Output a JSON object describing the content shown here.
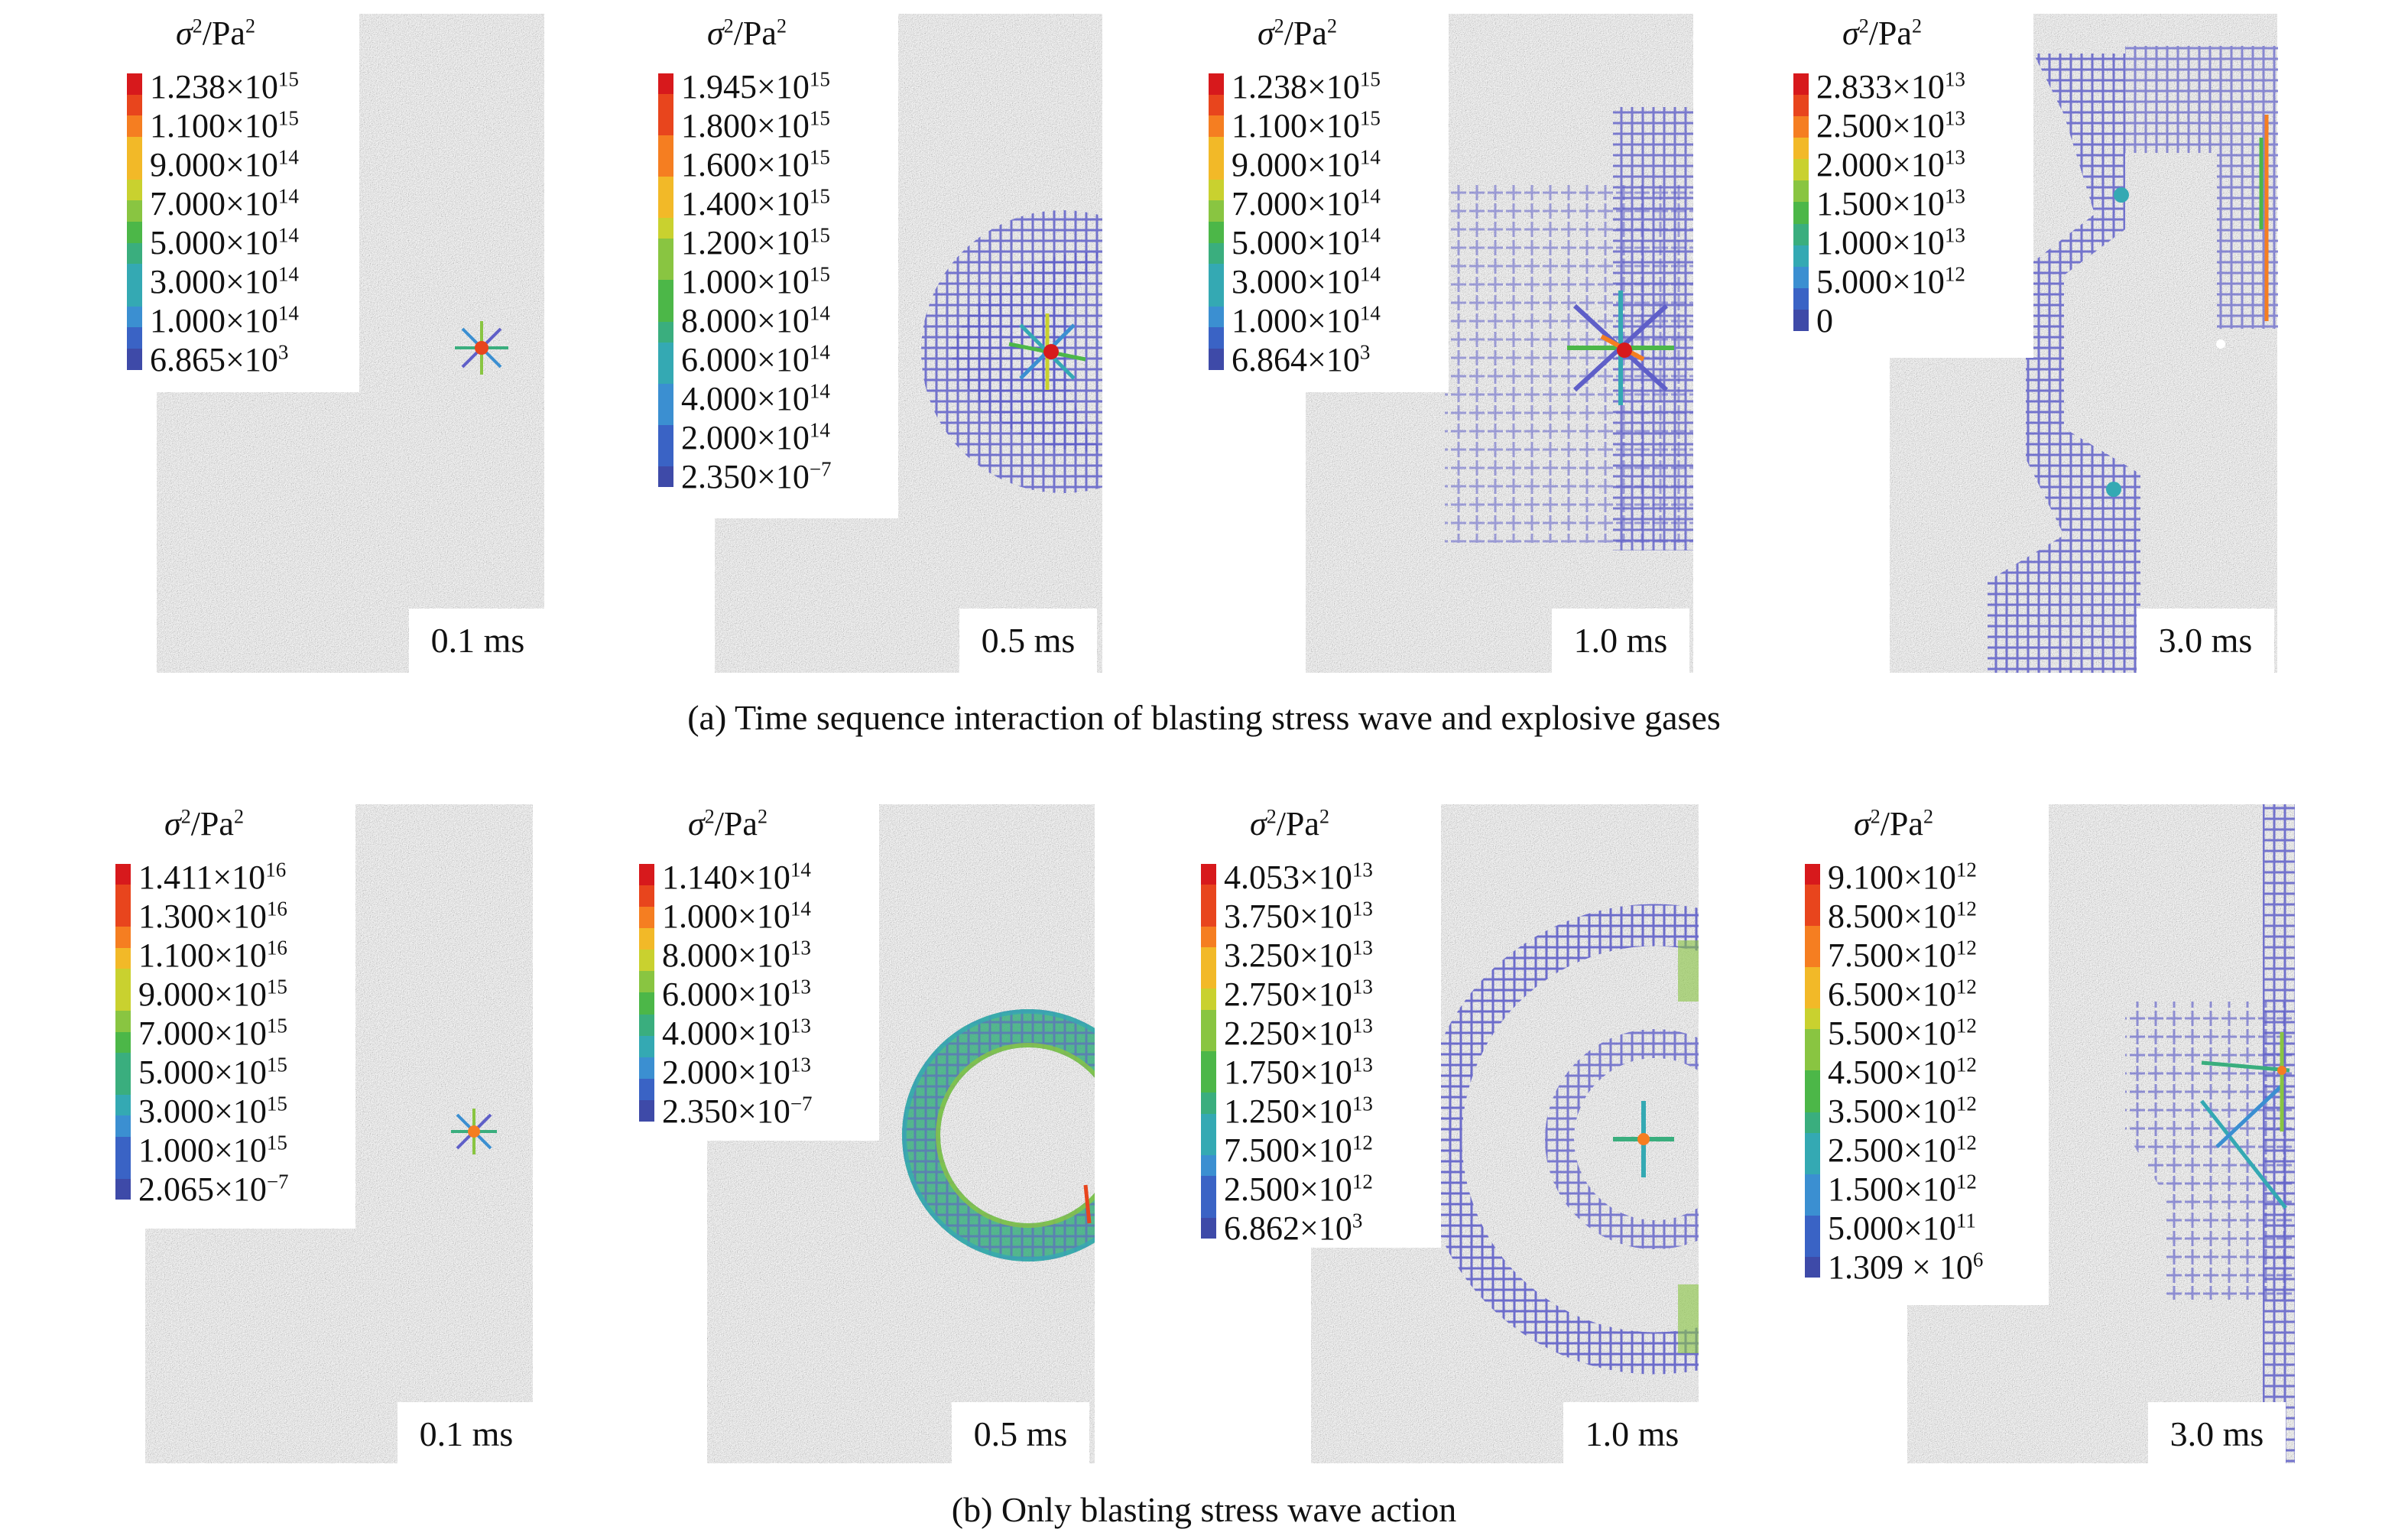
{
  "legend_title": "σ²/Pa²",
  "legend_colors": [
    "#d7191c",
    "#e8451d",
    "#f57e21",
    "#f2b928",
    "#c9d12f",
    "#89c541",
    "#4cb748",
    "#3aae7e",
    "#34a9b3",
    "#3b8fd1",
    "#3a63c5",
    "#3e4aa8"
  ],
  "stress_color": "#5f5fc8",
  "rows": [
    {
      "caption": "(a) Time sequence interaction of blasting stress wave and explosive gases",
      "panels": [
        {
          "time": "0.1 ms",
          "ticks": [
            {
              "m": "1.238",
              "e": "15"
            },
            {
              "m": "1.100",
              "e": "15"
            },
            {
              "m": "9.000",
              "e": "14"
            },
            {
              "m": "7.000",
              "e": "14"
            },
            {
              "m": "5.000",
              "e": "14"
            },
            {
              "m": "3.000",
              "e": "14"
            },
            {
              "m": "1.000",
              "e": "14"
            },
            {
              "m": "6.865",
              "e": "3"
            }
          ]
        },
        {
          "time": "0.5 ms",
          "ticks": [
            {
              "m": "1.945",
              "e": "15"
            },
            {
              "m": "1.800",
              "e": "15"
            },
            {
              "m": "1.600",
              "e": "15"
            },
            {
              "m": "1.400",
              "e": "15"
            },
            {
              "m": "1.200",
              "e": "15"
            },
            {
              "m": "1.000",
              "e": "15"
            },
            {
              "m": "8.000",
              "e": "14"
            },
            {
              "m": "6.000",
              "e": "14"
            },
            {
              "m": "4.000",
              "e": "14"
            },
            {
              "m": "2.000",
              "e": "14"
            },
            {
              "m": "2.350",
              "e": "−7"
            }
          ]
        },
        {
          "time": "1.0 ms",
          "ticks": [
            {
              "m": "1.238",
              "e": "15"
            },
            {
              "m": "1.100",
              "e": "15"
            },
            {
              "m": "9.000",
              "e": "14"
            },
            {
              "m": "7.000",
              "e": "14"
            },
            {
              "m": "5.000",
              "e": "14"
            },
            {
              "m": "3.000",
              "e": "14"
            },
            {
              "m": "1.000",
              "e": "14"
            },
            {
              "m": "6.864",
              "e": "3"
            }
          ]
        },
        {
          "time": "3.0 ms",
          "ticks": [
            {
              "m": "2.833",
              "e": "13"
            },
            {
              "m": "2.500",
              "e": "13"
            },
            {
              "m": "2.000",
              "e": "13"
            },
            {
              "m": "1.500",
              "e": "13"
            },
            {
              "m": "1.000",
              "e": "13"
            },
            {
              "m": "5.000",
              "e": "12"
            },
            {
              "m": "0",
              "e": ""
            }
          ]
        }
      ]
    },
    {
      "caption": "(b) Only blasting stress wave action",
      "panels": [
        {
          "time": "0.1 ms",
          "ticks": [
            {
              "m": "1.411",
              "e": "16"
            },
            {
              "m": "1.300",
              "e": "16"
            },
            {
              "m": "1.100",
              "e": "16"
            },
            {
              "m": "9.000",
              "e": "15"
            },
            {
              "m": "7.000",
              "e": "15"
            },
            {
              "m": "5.000",
              "e": "15"
            },
            {
              "m": "3.000",
              "e": "15"
            },
            {
              "m": "1.000",
              "e": "15"
            },
            {
              "m": "2.065",
              "e": "−7"
            }
          ]
        },
        {
          "time": "0.5 ms",
          "ticks": [
            {
              "m": "1.140",
              "e": "14"
            },
            {
              "m": "1.000",
              "e": "14"
            },
            {
              "m": "8.000",
              "e": "13"
            },
            {
              "m": "6.000",
              "e": "13"
            },
            {
              "m": "4.000",
              "e": "13"
            },
            {
              "m": "2.000",
              "e": "13"
            },
            {
              "m": "2.350",
              "e": "−7"
            }
          ]
        },
        {
          "time": "1.0 ms",
          "ticks": [
            {
              "m": "4.053",
              "e": "13"
            },
            {
              "m": "3.750",
              "e": "13"
            },
            {
              "m": "3.250",
              "e": "13"
            },
            {
              "m": "2.750",
              "e": "13"
            },
            {
              "m": "2.250",
              "e": "13"
            },
            {
              "m": "1.750",
              "e": "13"
            },
            {
              "m": "1.250",
              "e": "13"
            },
            {
              "m": "7.500",
              "e": "12"
            },
            {
              "m": "2.500",
              "e": "12"
            },
            {
              "m": "6.862",
              "e": "3"
            }
          ]
        },
        {
          "time": "3.0 ms",
          "ticks": [
            {
              "m": "9.100",
              "e": "12"
            },
            {
              "m": "8.500",
              "e": "12"
            },
            {
              "m": "7.500",
              "e": "12"
            },
            {
              "m": "6.500",
              "e": "12"
            },
            {
              "m": "5.500",
              "e": "12"
            },
            {
              "m": "4.500",
              "e": "12"
            },
            {
              "m": "3.500",
              "e": "12"
            },
            {
              "m": "2.500",
              "e": "12"
            },
            {
              "m": "1.500",
              "e": "12"
            },
            {
              "m": "5.000",
              "e": "11"
            },
            {
              "m": "1.309 × 10",
              "e": "6",
              "spaced": true
            }
          ]
        }
      ]
    }
  ]
}
